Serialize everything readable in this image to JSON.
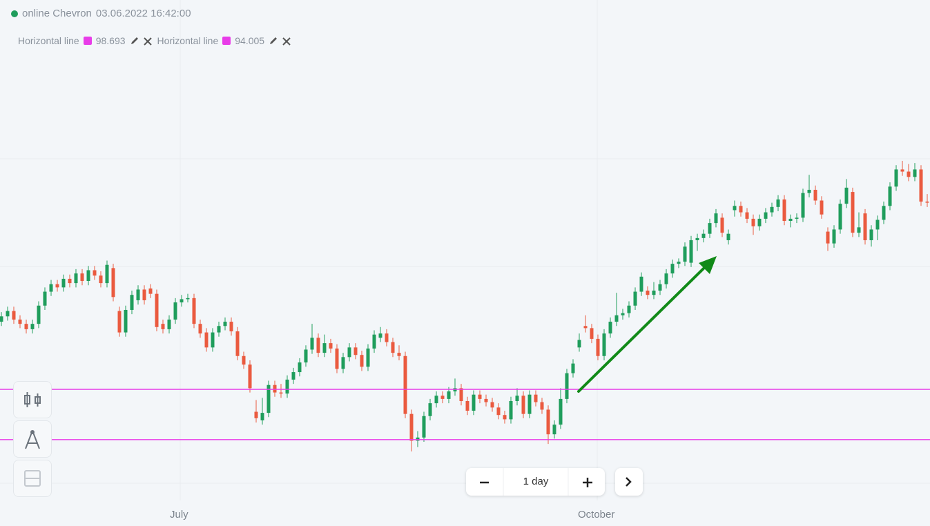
{
  "header": {
    "title": "online Chevron",
    "datetime": "03.06.2022 16:42:00"
  },
  "chart_data": {
    "type": "candlestick",
    "ylim": [
      90.5,
      135
    ],
    "up_color": "#1f9d5c",
    "down_color": "#ea5a3f",
    "x_labels": [
      "July",
      "October"
    ],
    "horizontal_lines": [
      {
        "name": "Horizontal line",
        "value": 98.693,
        "color": "#e83ce8"
      },
      {
        "name": "Horizontal line",
        "value": 94.005,
        "color": "#e83ce8"
      }
    ],
    "candles": [
      [
        105.0,
        105.9,
        104.6,
        105.5
      ],
      [
        105.5,
        106.4,
        105.1,
        106.0
      ],
      [
        106.0,
        106.4,
        104.8,
        105.2
      ],
      [
        105.2,
        105.6,
        104.4,
        104.8
      ],
      [
        104.8,
        105.2,
        103.9,
        104.3
      ],
      [
        104.3,
        105.2,
        103.9,
        104.8
      ],
      [
        104.8,
        106.9,
        104.4,
        106.5
      ],
      [
        106.5,
        108.2,
        106.1,
        107.8
      ],
      [
        107.8,
        108.9,
        107.4,
        108.5
      ],
      [
        108.5,
        108.9,
        107.8,
        108.2
      ],
      [
        108.2,
        109.4,
        107.8,
        109.0
      ],
      [
        109.0,
        109.4,
        108.2,
        108.6
      ],
      [
        108.6,
        109.9,
        108.2,
        109.5
      ],
      [
        109.5,
        109.9,
        108.4,
        108.8
      ],
      [
        108.8,
        110.2,
        108.4,
        109.8
      ],
      [
        109.8,
        110.2,
        108.9,
        109.3
      ],
      [
        109.3,
        109.7,
        108.2,
        108.6
      ],
      [
        108.6,
        110.7,
        108.2,
        110.3
      ],
      [
        110.0,
        110.4,
        106.9,
        107.3
      ],
      [
        106.0,
        106.4,
        103.6,
        104.0
      ],
      [
        104.0,
        106.5,
        103.6,
        106.1
      ],
      [
        106.1,
        107.9,
        105.7,
        107.5
      ],
      [
        107.0,
        108.4,
        106.6,
        108.0
      ],
      [
        108.0,
        108.4,
        106.6,
        107.0
      ],
      [
        108.1,
        108.5,
        107.2,
        107.6
      ],
      [
        107.6,
        108.0,
        104.1,
        104.5
      ],
      [
        104.8,
        105.2,
        103.9,
        104.3
      ],
      [
        104.3,
        105.6,
        103.9,
        105.2
      ],
      [
        105.2,
        107.2,
        104.8,
        106.8
      ],
      [
        106.8,
        107.5,
        106.4,
        107.1
      ],
      [
        107.1,
        107.6,
        106.8,
        107.2
      ],
      [
        107.2,
        107.6,
        104.4,
        104.8
      ],
      [
        104.8,
        105.2,
        103.5,
        103.9
      ],
      [
        104.0,
        104.4,
        102.2,
        102.6
      ],
      [
        102.6,
        104.4,
        102.2,
        104.0
      ],
      [
        104.0,
        105.0,
        103.6,
        104.6
      ],
      [
        104.6,
        105.4,
        104.2,
        105.0
      ],
      [
        105.0,
        105.4,
        103.7,
        104.1
      ],
      [
        104.1,
        104.5,
        101.4,
        101.8
      ],
      [
        101.8,
        102.2,
        100.6,
        101.0
      ],
      [
        101.0,
        101.4,
        98.4,
        98.8
      ],
      [
        96.6,
        97.7,
        95.6,
        96.0
      ],
      [
        95.8,
        97.9,
        95.4,
        96.5
      ],
      [
        96.5,
        99.5,
        96.1,
        99.1
      ],
      [
        99.1,
        99.5,
        98.0,
        98.4
      ],
      [
        98.4,
        99.2,
        97.9,
        98.3
      ],
      [
        98.3,
        100.0,
        97.9,
        99.6
      ],
      [
        99.6,
        100.7,
        99.2,
        100.3
      ],
      [
        100.3,
        101.6,
        99.9,
        101.2
      ],
      [
        101.2,
        102.8,
        100.8,
        102.4
      ],
      [
        102.4,
        104.8,
        102.0,
        103.5
      ],
      [
        103.5,
        103.9,
        101.7,
        102.1
      ],
      [
        102.1,
        103.8,
        101.7,
        103.0
      ],
      [
        103.0,
        103.4,
        102.1,
        102.5
      ],
      [
        102.5,
        102.9,
        100.2,
        100.6
      ],
      [
        100.6,
        102.1,
        100.2,
        101.7
      ],
      [
        101.7,
        103.0,
        101.3,
        102.6
      ],
      [
        102.6,
        103.0,
        101.5,
        101.9
      ],
      [
        101.9,
        102.3,
        100.4,
        100.8
      ],
      [
        100.8,
        102.9,
        100.4,
        102.5
      ],
      [
        102.5,
        104.2,
        102.1,
        103.8
      ],
      [
        103.5,
        104.5,
        103.1,
        103.9
      ],
      [
        103.9,
        104.3,
        102.7,
        103.1
      ],
      [
        103.1,
        103.5,
        101.7,
        102.1
      ],
      [
        102.1,
        102.8,
        101.4,
        101.8
      ],
      [
        101.8,
        102.2,
        96.0,
        96.4
      ],
      [
        96.4,
        96.8,
        92.9,
        93.9
      ],
      [
        93.9,
        94.8,
        93.3,
        94.2
      ],
      [
        94.2,
        96.6,
        93.8,
        96.2
      ],
      [
        96.2,
        97.8,
        95.8,
        97.4
      ],
      [
        97.4,
        98.5,
        97.0,
        98.1
      ],
      [
        98.1,
        98.5,
        97.4,
        97.8
      ],
      [
        97.8,
        98.9,
        97.4,
        98.5
      ],
      [
        98.5,
        99.7,
        98.1,
        98.8
      ],
      [
        98.8,
        99.2,
        97.2,
        97.6
      ],
      [
        97.6,
        98.0,
        96.3,
        96.7
      ],
      [
        96.7,
        98.6,
        96.3,
        98.2
      ],
      [
        98.2,
        98.6,
        97.4,
        97.8
      ],
      [
        97.8,
        98.2,
        97.1,
        97.5
      ],
      [
        97.5,
        97.9,
        96.6,
        97.0
      ],
      [
        97.0,
        97.4,
        95.9,
        96.3
      ],
      [
        96.3,
        96.7,
        95.5,
        95.9
      ],
      [
        95.9,
        98.0,
        95.5,
        97.6
      ],
      [
        97.6,
        98.8,
        97.2,
        98.1
      ],
      [
        98.1,
        98.5,
        96.0,
        96.4
      ],
      [
        96.4,
        98.6,
        96.0,
        98.2
      ],
      [
        98.2,
        98.6,
        97.1,
        97.5
      ],
      [
        97.5,
        97.9,
        96.4,
        96.8
      ],
      [
        96.8,
        97.2,
        93.6,
        94.5
      ],
      [
        94.5,
        95.8,
        94.1,
        95.4
      ],
      [
        95.4,
        98.8,
        95.0,
        97.8
      ],
      [
        97.8,
        100.6,
        97.4,
        100.2
      ],
      [
        100.2,
        101.5,
        99.8,
        101.1
      ],
      [
        102.6,
        103.9,
        102.2,
        103.3
      ],
      [
        104.6,
        105.6,
        104.0,
        104.4
      ],
      [
        104.4,
        104.8,
        103.0,
        103.4
      ],
      [
        103.4,
        103.8,
        101.4,
        101.8
      ],
      [
        101.8,
        104.3,
        101.4,
        103.9
      ],
      [
        103.9,
        105.4,
        103.5,
        105.0
      ],
      [
        105.0,
        107.7,
        104.6,
        105.6
      ],
      [
        105.6,
        106.2,
        105.2,
        105.8
      ],
      [
        105.8,
        106.9,
        105.4,
        106.5
      ],
      [
        106.5,
        108.2,
        106.1,
        107.8
      ],
      [
        107.8,
        109.6,
        107.4,
        109.2
      ],
      [
        107.9,
        108.3,
        107.1,
        107.5
      ],
      [
        107.5,
        108.7,
        107.1,
        107.9
      ],
      [
        107.9,
        108.9,
        107.5,
        108.5
      ],
      [
        108.5,
        109.9,
        108.1,
        109.5
      ],
      [
        109.5,
        110.8,
        109.1,
        110.4
      ],
      [
        110.4,
        110.9,
        110.0,
        110.6
      ],
      [
        110.6,
        112.4,
        110.2,
        112.0
      ],
      [
        110.5,
        113.0,
        110.1,
        112.6
      ],
      [
        112.6,
        113.2,
        111.6,
        112.8
      ],
      [
        112.8,
        113.6,
        112.4,
        113.2
      ],
      [
        113.2,
        114.6,
        112.8,
        114.2
      ],
      [
        114.2,
        115.5,
        113.8,
        115.1
      ],
      [
        114.7,
        115.1,
        112.9,
        113.3
      ],
      [
        112.6,
        113.6,
        112.2,
        113.2
      ],
      [
        115.4,
        116.3,
        114.8,
        115.8
      ],
      [
        115.8,
        116.2,
        114.8,
        115.2
      ],
      [
        115.2,
        115.6,
        114.2,
        114.6
      ],
      [
        114.6,
        115.0,
        113.1,
        113.9
      ],
      [
        113.9,
        115.0,
        113.5,
        114.6
      ],
      [
        114.6,
        115.6,
        114.2,
        115.2
      ],
      [
        115.2,
        116.1,
        114.8,
        115.7
      ],
      [
        115.7,
        116.8,
        115.3,
        116.4
      ],
      [
        116.4,
        116.8,
        114.0,
        114.4
      ],
      [
        114.4,
        115.0,
        113.8,
        114.6
      ],
      [
        114.6,
        115.1,
        114.2,
        114.7
      ],
      [
        114.7,
        117.4,
        114.3,
        117.0
      ],
      [
        117.0,
        118.7,
        116.6,
        117.3
      ],
      [
        117.3,
        117.7,
        115.9,
        116.3
      ],
      [
        116.3,
        116.7,
        114.6,
        115.0
      ],
      [
        113.4,
        113.8,
        111.6,
        112.3
      ],
      [
        112.3,
        114.0,
        111.9,
        113.6
      ],
      [
        113.6,
        116.4,
        113.2,
        116.0
      ],
      [
        116.0,
        118.3,
        115.6,
        117.5
      ],
      [
        117.1,
        117.5,
        112.9,
        113.3
      ],
      [
        113.3,
        115.2,
        112.9,
        113.8
      ],
      [
        115.1,
        115.5,
        112.2,
        112.6
      ],
      [
        112.6,
        114.0,
        112.0,
        113.6
      ],
      [
        113.6,
        114.9,
        112.6,
        114.5
      ],
      [
        114.5,
        116.2,
        114.1,
        115.8
      ],
      [
        115.8,
        118.0,
        115.4,
        117.6
      ],
      [
        117.6,
        119.6,
        117.2,
        119.2
      ],
      [
        119.2,
        120.0,
        118.6,
        119.0
      ],
      [
        119.0,
        119.7,
        118.1,
        118.5
      ],
      [
        118.5,
        119.8,
        118.1,
        119.2
      ],
      [
        119.2,
        119.6,
        115.8,
        116.2
      ],
      [
        116.2,
        116.9,
        115.7,
        116.1
      ]
    ]
  },
  "controls": {
    "interval": "1 day"
  }
}
